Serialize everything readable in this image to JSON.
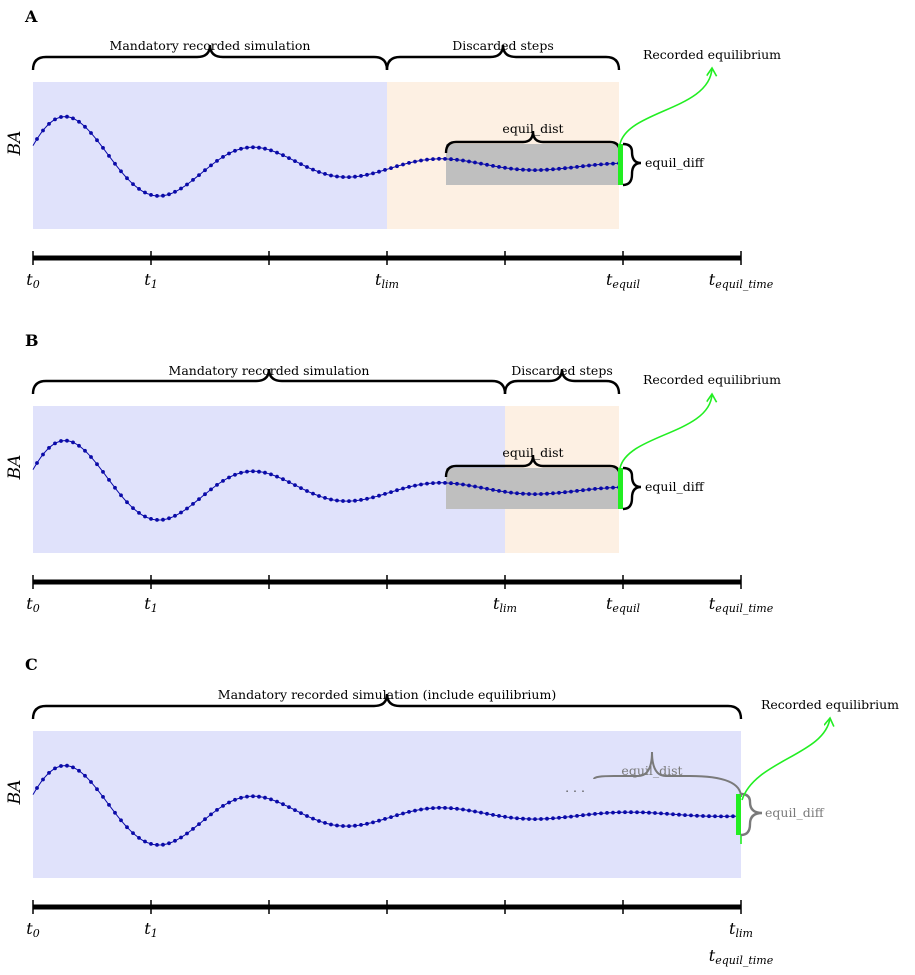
{
  "panels": [
    {
      "letter": "A",
      "ylabel": "BA",
      "braces": {
        "mandatory": "Mandatory recorded simulation",
        "discarded": "Discarded steps",
        "equil_dist": "equil_dist",
        "equil_diff": "equil_diff",
        "recorded": "Recorded equilibrium"
      },
      "ticks": [
        {
          "base": "t",
          "sub": "0"
        },
        {
          "base": "t",
          "sub": "1"
        },
        {
          "base": "t",
          "sub": "lim"
        },
        {
          "base": "t",
          "sub": "equil"
        },
        {
          "base": "t",
          "sub": "equil_time"
        }
      ]
    },
    {
      "letter": "B",
      "ylabel": "BA",
      "braces": {
        "mandatory": "Mandatory recorded simulation",
        "discarded": "Discarded steps",
        "equil_dist": "equil_dist",
        "equil_diff": "equil_diff",
        "recorded": "Recorded equilibrium"
      },
      "ticks": [
        {
          "base": "t",
          "sub": "0"
        },
        {
          "base": "t",
          "sub": "1"
        },
        {
          "base": "t",
          "sub": "lim"
        },
        {
          "base": "t",
          "sub": "equil"
        },
        {
          "base": "t",
          "sub": "equil_time"
        }
      ]
    },
    {
      "letter": "C",
      "ylabel": "BA",
      "braces": {
        "mandatory": "Mandatory recorded simulation (include equilibrium)",
        "equil_dist": "equil_dist",
        "equil_diff": "equil_diff",
        "recorded": "Recorded equilibrium",
        "ellipsis": ". . ."
      },
      "ticks": [
        {
          "base": "t",
          "sub": "0"
        },
        {
          "base": "t",
          "sub": "1"
        },
        {
          "base": "t",
          "sub": "lim"
        },
        {
          "base": "t",
          "sub": "equil_time"
        }
      ]
    }
  ],
  "colors": {
    "mandatory_region": "#e0e2fb",
    "discarded_region": "#fdf0e3",
    "equil_box": "#bfbfbf",
    "curve": "#0a0aa8",
    "equil_marker": "#22ee22",
    "arrow": "#22ee22",
    "gray_brace": "#7a7a7a"
  }
}
